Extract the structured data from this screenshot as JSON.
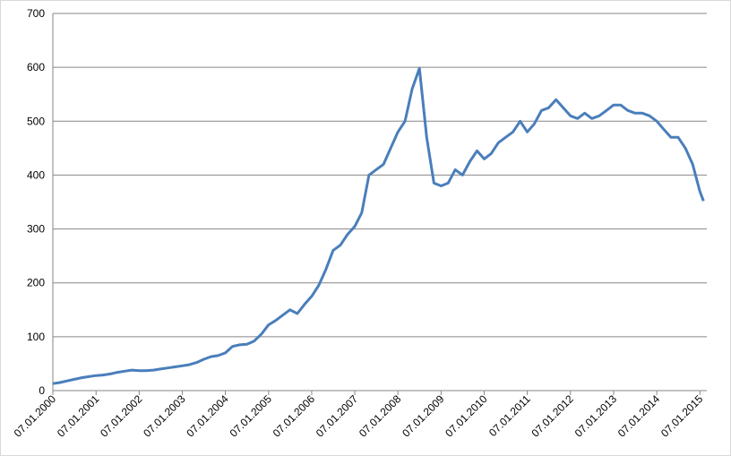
{
  "chart_data": {
    "type": "line",
    "x": [
      "07.01.2000",
      "07.03.2000",
      "07.05.2000",
      "07.07.2000",
      "07.09.2000",
      "07.11.2000",
      "07.01.2001",
      "07.03.2001",
      "07.05.2001",
      "07.07.2001",
      "07.09.2001",
      "07.11.2001",
      "07.01.2002",
      "07.03.2002",
      "07.05.2002",
      "07.07.2002",
      "07.09.2002",
      "07.11.2002",
      "07.01.2003",
      "07.03.2003",
      "07.05.2003",
      "07.07.2003",
      "07.09.2003",
      "07.11.2003",
      "07.01.2004",
      "07.03.2004",
      "07.05.2004",
      "07.07.2004",
      "07.09.2004",
      "07.11.2004",
      "07.01.2005",
      "07.03.2005",
      "07.05.2005",
      "07.07.2005",
      "07.09.2005",
      "07.11.2005",
      "07.01.2006",
      "07.03.2006",
      "07.05.2006",
      "07.07.2006",
      "07.09.2006",
      "07.11.2006",
      "07.01.2007",
      "07.03.2007",
      "07.05.2007",
      "07.07.2007",
      "07.09.2007",
      "07.11.2007",
      "07.01.2008",
      "07.03.2008",
      "07.05.2008",
      "07.07.2008",
      "07.09.2008",
      "07.11.2008",
      "07.01.2009",
      "07.03.2009",
      "07.05.2009",
      "07.07.2009",
      "07.09.2009",
      "07.11.2009",
      "07.01.2010",
      "07.03.2010",
      "07.05.2010",
      "07.07.2010",
      "07.09.2010",
      "07.11.2010",
      "07.01.2011",
      "07.03.2011",
      "07.05.2011",
      "07.07.2011",
      "07.09.2011",
      "07.11.2011",
      "07.01.2012",
      "07.03.2012",
      "07.05.2012",
      "07.07.2012",
      "07.09.2012",
      "07.11.2012",
      "07.01.2013",
      "07.03.2013",
      "07.05.2013",
      "07.07.2013",
      "07.09.2013",
      "07.11.2013",
      "07.01.2014",
      "07.03.2014",
      "07.05.2014",
      "07.07.2014",
      "07.09.2014",
      "07.11.2014",
      "07.01.2015",
      "07.02.2015"
    ],
    "series": [
      {
        "color": "#4a7ebb",
        "values": [
          13,
          15,
          18,
          21,
          24,
          26,
          28,
          29,
          31,
          34,
          36,
          38,
          37,
          37,
          38,
          40,
          42,
          44,
          46,
          48,
          52,
          58,
          63,
          65,
          70,
          82,
          85,
          86,
          92,
          105,
          122,
          130,
          140,
          150,
          143,
          160,
          175,
          195,
          225,
          260,
          270,
          290,
          305,
          330,
          400,
          410,
          420,
          450,
          480,
          500,
          560,
          598,
          470,
          385,
          380,
          385,
          410,
          400,
          425,
          445,
          430,
          440,
          460,
          470,
          480,
          500,
          480,
          495,
          520,
          525,
          540,
          525,
          510,
          505,
          515,
          505,
          510,
          520,
          530,
          530,
          520,
          515,
          515,
          510,
          500,
          485,
          470,
          470,
          450,
          420,
          370,
          352
        ]
      }
    ],
    "xlim": [
      "07.01.2000",
      "07.03.2015"
    ],
    "xticks": [
      "07.01.2000",
      "07.01.2001",
      "07.01.2002",
      "07.01.2003",
      "07.01.2004",
      "07.01.2005",
      "07.01.2006",
      "07.01.2007",
      "07.01.2008",
      "07.01.2009",
      "07.01.2010",
      "07.01.2011",
      "07.01.2012",
      "07.01.2013",
      "07.01.2014",
      "07.01.2015"
    ],
    "ylim": [
      0,
      700
    ],
    "yticks": [
      0,
      100,
      200,
      300,
      400,
      500,
      600,
      700
    ],
    "grid": true
  }
}
